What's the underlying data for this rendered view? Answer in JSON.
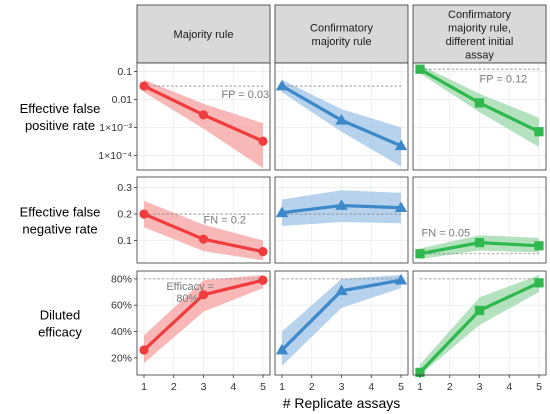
{
  "chart_data": {
    "type": "line",
    "x_label": "# Replicate assays",
    "x_ticks": [
      1,
      2,
      3,
      4,
      5
    ],
    "columns": [
      {
        "title_lines": [
          "Majority rule"
        ],
        "color": "#F03C3C",
        "fill": "#F5A0A0",
        "marker": "circle"
      },
      {
        "title_lines": [
          "Confirmatory",
          "majority rule"
        ],
        "color": "#3D88C8",
        "fill": "#9EC3E6",
        "marker": "triangle"
      },
      {
        "title_lines": [
          "Confirmatory",
          "majority rule,",
          "different initial",
          "assay"
        ],
        "color": "#2EB84E",
        "fill": "#9BD8A8",
        "marker": "square"
      }
    ],
    "rows": [
      {
        "label_lines": [
          "Effective false",
          "positive rate"
        ],
        "scale": "log",
        "ylim": [
          3e-05,
          0.2
        ],
        "tick_labels": [
          "0.1",
          "0.01",
          "1×10⁻³",
          "1×10⁻⁴"
        ],
        "tick_values": [
          0.1,
          0.01,
          0.001,
          0.0001
        ],
        "panels": [
          {
            "x": [
              1,
              3,
              5
            ],
            "y": [
              0.03,
              0.0028,
              0.00032
            ],
            "lo": [
              0.018,
              0.0009,
              3.5e-05
            ],
            "hi": [
              0.05,
              0.007,
              0.0014
            ],
            "ref": 0.03,
            "annotation": "FP = 0.03",
            "annotation_x": 3.6,
            "annotation_y": 0.011
          },
          {
            "x": [
              1,
              3,
              5
            ],
            "y": [
              0.03,
              0.0018,
              0.00022
            ],
            "lo": [
              0.018,
              0.0007,
              4e-05
            ],
            "hi": [
              0.05,
              0.0045,
              0.001
            ],
            "ref": 0.03,
            "annotation": "",
            "annotation_x": 0,
            "annotation_y": 0
          },
          {
            "x": [
              1,
              3,
              5
            ],
            "y": [
              0.12,
              0.0075,
              0.0007
            ],
            "lo": [
              0.085,
              0.0035,
              0.0002
            ],
            "hi": [
              0.17,
              0.016,
              0.0022
            ],
            "ref": 0.12,
            "annotation": "FP = 0.12",
            "annotation_x": 3.0,
            "annotation_y": 0.04
          }
        ]
      },
      {
        "label_lines": [
          "Effective false",
          "negative rate"
        ],
        "scale": "linear",
        "ylim": [
          0.015,
          0.34
        ],
        "tick_labels": [
          "0.3",
          "0.2",
          "0.1"
        ],
        "tick_values": [
          0.3,
          0.2,
          0.1
        ],
        "panels": [
          {
            "x": [
              1,
              3,
              5
            ],
            "y": [
              0.2,
              0.105,
              0.058
            ],
            "lo": [
              0.15,
              0.06,
              0.025
            ],
            "hi": [
              0.25,
              0.16,
              0.1
            ],
            "ref": 0.2,
            "annotation": "FN = 0.2",
            "annotation_x": 3.0,
            "annotation_y": 0.165
          },
          {
            "x": [
              1,
              3,
              5
            ],
            "y": [
              0.205,
              0.232,
              0.224
            ],
            "lo": [
              0.155,
              0.17,
              0.165
            ],
            "hi": [
              0.255,
              0.29,
              0.28
            ],
            "ref": 0.2,
            "annotation": "",
            "annotation_x": 0,
            "annotation_y": 0
          },
          {
            "x": [
              1,
              3,
              5
            ],
            "y": [
              0.05,
              0.092,
              0.08
            ],
            "lo": [
              0.03,
              0.062,
              0.055
            ],
            "hi": [
              0.07,
              0.12,
              0.11
            ],
            "ref": 0.05,
            "annotation": "FN = 0.05",
            "annotation_x": 1.05,
            "annotation_y": 0.115
          }
        ]
      },
      {
        "label_lines": [
          "Diluted",
          "efficacy"
        ],
        "scale": "linear",
        "ylim": [
          0.07,
          0.86
        ],
        "tick_labels": [
          "80%",
          "60%",
          "40%",
          "20%"
        ],
        "tick_values": [
          0.8,
          0.6,
          0.4,
          0.2
        ],
        "panels": [
          {
            "x": [
              1,
              3,
              5
            ],
            "y": [
              0.26,
              0.68,
              0.79
            ],
            "lo": [
              0.16,
              0.55,
              0.73
            ],
            "hi": [
              0.37,
              0.79,
              0.83
            ],
            "ref": 0.8,
            "annotation": "Efficacy =\n80%",
            "annotation_x": 1.75,
            "annotation_y": 0.715
          },
          {
            "x": [
              1,
              3,
              5
            ],
            "y": [
              0.26,
              0.71,
              0.79
            ],
            "lo": [
              0.14,
              0.58,
              0.73
            ],
            "hi": [
              0.4,
              0.8,
              0.83
            ],
            "ref": 0.8,
            "annotation": "",
            "annotation_x": 0,
            "annotation_y": 0
          },
          {
            "x": [
              1,
              3,
              5
            ],
            "y": [
              0.09,
              0.56,
              0.77
            ],
            "lo": [
              0.07,
              0.45,
              0.7
            ],
            "hi": [
              0.15,
              0.66,
              0.83
            ],
            "ref": 0.8,
            "annotation": "",
            "annotation_x": 0,
            "annotation_y": 0
          }
        ]
      }
    ]
  }
}
